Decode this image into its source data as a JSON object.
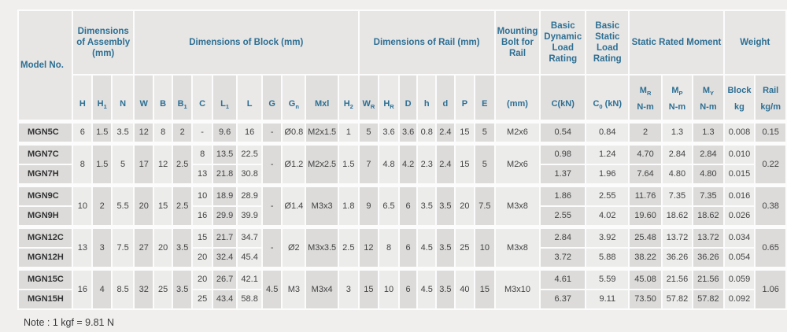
{
  "note": "Note : 1 kgf = 9.81 N",
  "colors": {
    "header_text": "#2d6f93",
    "body_text": "#434343",
    "cell_light": "#ececeb",
    "cell_dark": "#dcdbda",
    "header_bg": "#e7e6e5",
    "page_bg": "#f0efee"
  },
  "table": {
    "model_header": "Model No.",
    "groups": [
      {
        "label": "Dimensions of Assembly (mm)",
        "span": 3
      },
      {
        "label": "Dimensions of Block (mm)",
        "span": 10
      },
      {
        "label": "Dimensions of Rail (mm)",
        "span": 7
      },
      {
        "label": "Mounting Bolt for Rail",
        "span": 1
      },
      {
        "label": "Basic Dynamic Load Rating",
        "span": 1
      },
      {
        "label": "Basic Static Load Rating",
        "span": 1
      },
      {
        "label": "Static Rated Moment",
        "span": 3
      },
      {
        "label": "Weight",
        "span": 2
      }
    ],
    "columns": [
      {
        "key": "name",
        "w": 68,
        "shared": false,
        "sub": ""
      },
      {
        "key": "H",
        "w": 23,
        "shared": true,
        "sub": "H"
      },
      {
        "key": "H1",
        "w": 23,
        "shared": true,
        "sub": "H~1~"
      },
      {
        "key": "N",
        "w": 26,
        "shared": true,
        "sub": "N"
      },
      {
        "key": "W",
        "w": 24,
        "shared": true,
        "sub": "W"
      },
      {
        "key": "B",
        "w": 22,
        "shared": true,
        "sub": "B"
      },
      {
        "key": "B1",
        "w": 24,
        "shared": true,
        "sub": "B~1~"
      },
      {
        "key": "C",
        "w": 24,
        "shared": false,
        "sub": "C"
      },
      {
        "key": "L1",
        "w": 30,
        "shared": false,
        "sub": "L~1~"
      },
      {
        "key": "L",
        "w": 30,
        "shared": false,
        "sub": "L"
      },
      {
        "key": "G",
        "w": 24,
        "shared": true,
        "sub": "G"
      },
      {
        "key": "Gn",
        "w": 28,
        "shared": true,
        "sub": "G~n~"
      },
      {
        "key": "Mxl",
        "w": 40,
        "shared": true,
        "sub": "Mxl"
      },
      {
        "key": "H2",
        "w": 24,
        "shared": true,
        "sub": "H~2~"
      },
      {
        "key": "WR",
        "w": 24,
        "shared": true,
        "sub": "W~R~"
      },
      {
        "key": "HR",
        "w": 24,
        "shared": true,
        "sub": "H~R~"
      },
      {
        "key": "D",
        "w": 22,
        "shared": true,
        "sub": "D"
      },
      {
        "key": "h",
        "w": 22,
        "shared": true,
        "sub": "h"
      },
      {
        "key": "d",
        "w": 22,
        "shared": true,
        "sub": "d"
      },
      {
        "key": "P",
        "w": 24,
        "shared": true,
        "sub": "P"
      },
      {
        "key": "E",
        "w": 24,
        "shared": true,
        "sub": "E"
      },
      {
        "key": "bolt",
        "w": 55,
        "shared": true,
        "sub": "(mm)"
      },
      {
        "key": "Ckn",
        "w": 56,
        "shared": false,
        "sub": "C(kN)"
      },
      {
        "key": "C0kn",
        "w": 54,
        "shared": false,
        "sub": "C~0~ (kN)"
      },
      {
        "key": "MR",
        "w": 40,
        "shared": false,
        "sub": "M~R~",
        "unit": "N-m"
      },
      {
        "key": "MP",
        "w": 38,
        "shared": false,
        "sub": "M~P~",
        "unit": "N-m"
      },
      {
        "key": "MY",
        "w": 38,
        "shared": false,
        "sub": "M~Y~",
        "unit": "N-m"
      },
      {
        "key": "block",
        "w": 38,
        "shared": false,
        "sub": "Block",
        "unit": "kg"
      },
      {
        "key": "rail",
        "w": 38,
        "shared": true,
        "sub": "Rail",
        "unit": "kg/m"
      }
    ],
    "blocks": [
      {
        "shared": {
          "H": "6",
          "H1": "1.5",
          "N": "3.5",
          "W": "12",
          "B": "8",
          "B1": "2",
          "G": "-",
          "Gn": "Ø0.8",
          "Mxl": "M2x1.5",
          "H2": "1",
          "WR": "5",
          "HR": "3.6",
          "D": "3.6",
          "h": "0.8",
          "d": "2.4",
          "P": "15",
          "E": "5",
          "bolt": "M2x6",
          "rail": "0.15"
        },
        "models": [
          {
            "name": "MGN5C",
            "C": "-",
            "L1": "9.6",
            "L": "16",
            "Ckn": "0.54",
            "C0kn": "0.84",
            "MR": "2",
            "MP": "1.3",
            "MY": "1.3",
            "block": "0.008"
          }
        ]
      },
      {
        "shared": {
          "H": "8",
          "H1": "1.5",
          "N": "5",
          "W": "17",
          "B": "12",
          "B1": "2.5",
          "G": "-",
          "Gn": "Ø1.2",
          "Mxl": "M2x2.5",
          "H2": "1.5",
          "WR": "7",
          "HR": "4.8",
          "D": "4.2",
          "h": "2.3",
          "d": "2.4",
          "P": "15",
          "E": "5",
          "bolt": "M2x6",
          "rail": "0.22"
        },
        "models": [
          {
            "name": "MGN7C",
            "C": "8",
            "L1": "13.5",
            "L": "22.5",
            "Ckn": "0.98",
            "C0kn": "1.24",
            "MR": "4.70",
            "MP": "2.84",
            "MY": "2.84",
            "block": "0.010"
          },
          {
            "name": "MGN7H",
            "C": "13",
            "L1": "21.8",
            "L": "30.8",
            "Ckn": "1.37",
            "C0kn": "1.96",
            "MR": "7.64",
            "MP": "4.80",
            "MY": "4.80",
            "block": "0.015"
          }
        ]
      },
      {
        "shared": {
          "H": "10",
          "H1": "2",
          "N": "5.5",
          "W": "20",
          "B": "15",
          "B1": "2.5",
          "G": "-",
          "Gn": "Ø1.4",
          "Mxl": "M3x3",
          "H2": "1.8",
          "WR": "9",
          "HR": "6.5",
          "D": "6",
          "h": "3.5",
          "d": "3.5",
          "P": "20",
          "E": "7.5",
          "bolt": "M3x8",
          "rail": "0.38"
        },
        "models": [
          {
            "name": "MGN9C",
            "C": "10",
            "L1": "18.9",
            "L": "28.9",
            "Ckn": "1.86",
            "C0kn": "2.55",
            "MR": "11.76",
            "MP": "7.35",
            "MY": "7.35",
            "block": "0.016"
          },
          {
            "name": "MGN9H",
            "C": "16",
            "L1": "29.9",
            "L": "39.9",
            "Ckn": "2.55",
            "C0kn": "4.02",
            "MR": "19.60",
            "MP": "18.62",
            "MY": "18.62",
            "block": "0.026"
          }
        ]
      },
      {
        "shared": {
          "H": "13",
          "H1": "3",
          "N": "7.5",
          "W": "27",
          "B": "20",
          "B1": "3.5",
          "G": "-",
          "Gn": "Ø2",
          "Mxl": "M3x3.5",
          "H2": "2.5",
          "WR": "12",
          "HR": "8",
          "D": "6",
          "h": "4.5",
          "d": "3.5",
          "P": "25",
          "E": "10",
          "bolt": "M3x8",
          "rail": "0.65"
        },
        "models": [
          {
            "name": "MGN12C",
            "C": "15",
            "L1": "21.7",
            "L": "34.7",
            "Ckn": "2.84",
            "C0kn": "3.92",
            "MR": "25.48",
            "MP": "13.72",
            "MY": "13.72",
            "block": "0.034"
          },
          {
            "name": "MGN12H",
            "C": "20",
            "L1": "32.4",
            "L": "45.4",
            "Ckn": "3.72",
            "C0kn": "5.88",
            "MR": "38.22",
            "MP": "36.26",
            "MY": "36.26",
            "block": "0.054"
          }
        ]
      },
      {
        "shared": {
          "H": "16",
          "H1": "4",
          "N": "8.5",
          "W": "32",
          "B": "25",
          "B1": "3.5",
          "G": "4.5",
          "Gn": "M3",
          "Mxl": "M3x4",
          "H2": "3",
          "WR": "15",
          "HR": "10",
          "D": "6",
          "h": "4.5",
          "d": "3.5",
          "P": "40",
          "E": "15",
          "bolt": "M3x10",
          "rail": "1.06"
        },
        "models": [
          {
            "name": "MGN15C",
            "C": "20",
            "L1": "26.7",
            "L": "42.1",
            "Ckn": "4.61",
            "C0kn": "5.59",
            "MR": "45.08",
            "MP": "21.56",
            "MY": "21.56",
            "block": "0.059"
          },
          {
            "name": "MGN15H",
            "C": "25",
            "L1": "43.4",
            "L": "58.8",
            "Ckn": "6.37",
            "C0kn": "9.11",
            "MR": "73.50",
            "MP": "57.82",
            "MY": "57.82",
            "block": "0.092"
          }
        ]
      }
    ]
  }
}
